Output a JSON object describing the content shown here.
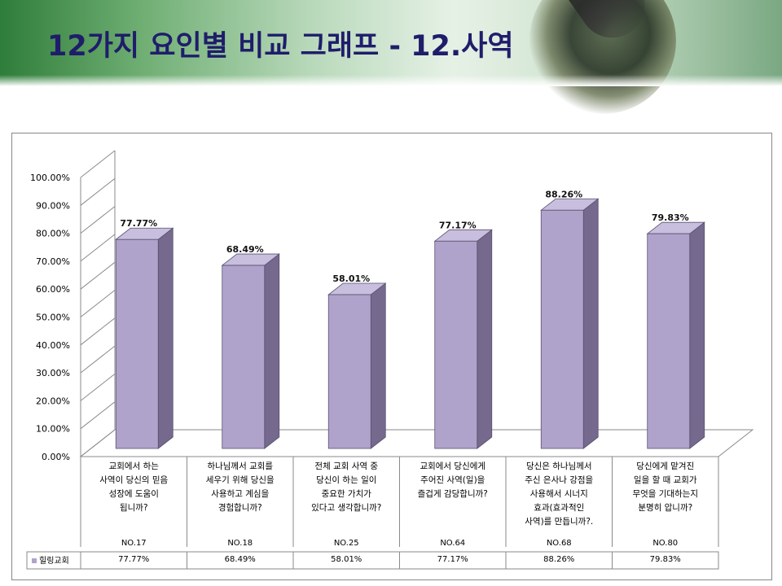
{
  "slide": {
    "title": "12가지 요인별 비교 그래프 - 12.사역"
  },
  "chart_data": {
    "type": "bar",
    "categories": [
      "교회에서 하는 사역이 당신의 믿음 성장에 도움이 됩니까?",
      "하나님께서 교회를 세우기 위해 당신을 사용하고 계심을 경험합니까?",
      "전체 교회 사역 중 당신이 하는 일이 중요한 가치가 있다고 생각합니까?",
      "교회에서 당신에게 주어진 사역(일)을 즐겁게 감당합니까?",
      "당신은 하나님께서 주신 은사나 강점을 사용해서 시너지 효과(효과적인 사역)를 만듭니까?.",
      "당신에게 맡겨진 일을 할 때 교회가 무엇을 기대하는지 분명히 압니까?"
    ],
    "category_lines": [
      [
        "교회에서 하는",
        "사역이 당신의 믿음",
        "성장에 도움이",
        "됩니까?"
      ],
      [
        "하나님께서 교회를",
        "세우기 위해 당신을",
        "사용하고 계심을",
        "경험합니까?"
      ],
      [
        "전체 교회 사역 중",
        "당신이 하는 일이",
        "중요한 가치가",
        "있다고 생각합니까?"
      ],
      [
        "교회에서 당신에게",
        "주어진 사역(일)을",
        "즐겁게 감당합니까?"
      ],
      [
        "당신은 하나님께서",
        "주신 은사나 강점을",
        "사용해서 시너지",
        "효과(효과적인",
        "사역)를 만듭니까?."
      ],
      [
        "당신에게 맡겨진",
        "일을 할 때 교회가",
        "무엇을 기대하는지",
        "분명히 압니까?"
      ]
    ],
    "codes": [
      "NO.17",
      "NO.18",
      "NO.25",
      "NO.64",
      "NO.68",
      "NO.80"
    ],
    "series": [
      {
        "name": "힐링교회",
        "values": [
          77.77,
          68.49,
          58.01,
          77.17,
          88.26,
          79.83
        ],
        "labels": [
          "77.77%",
          "68.49%",
          "58.01%",
          "77.17%",
          "88.26%",
          "79.83%"
        ]
      }
    ],
    "ylim": [
      0,
      100
    ],
    "yticks": [
      "0.00%",
      "10.00%",
      "20.00%",
      "30.00%",
      "40.00%",
      "50.00%",
      "60.00%",
      "70.00%",
      "80.00%",
      "90.00%",
      "100.00%"
    ],
    "grid": false,
    "legend": "bottom-left, in data table",
    "colors": {
      "bar_front": "#b0a3cb",
      "bar_side": "#75698e",
      "bar_top": "#c8bedd",
      "title": "#1f1d6b"
    }
  }
}
